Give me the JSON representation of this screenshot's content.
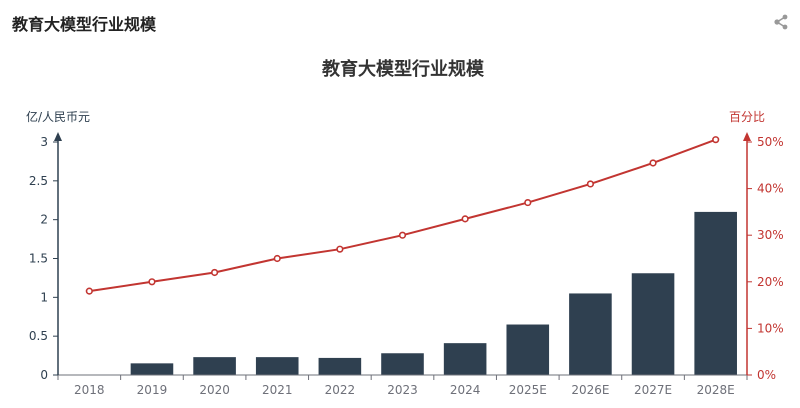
{
  "header": {
    "title": "教育大模型行业规模"
  },
  "icons": {
    "toolbar": "share-icon"
  },
  "colors": {
    "bar": "#2f4050",
    "line": "#c23531",
    "left_axis": "#2f4050",
    "tick_text": "#6e7079"
  },
  "chart_data": {
    "type": "bar",
    "title": "教育大模型行业规模",
    "categories": [
      "2018",
      "2019",
      "2020",
      "2021",
      "2022",
      "2023",
      "2024",
      "2025E",
      "2026E",
      "2027E",
      "2028E"
    ],
    "series": [
      {
        "type": "bar",
        "axis": "left",
        "values": [
          0,
          0.15,
          0.23,
          0.23,
          0.22,
          0.28,
          0.41,
          0.65,
          1.05,
          1.31,
          2.1
        ]
      },
      {
        "type": "line",
        "axis": "right",
        "values": [
          18,
          20,
          22,
          25,
          27,
          30,
          33.5,
          37,
          41,
          45.5,
          50.5
        ]
      }
    ],
    "y_left": {
      "label": "亿/人民币元",
      "ylim": [
        0,
        3
      ],
      "ticks": [
        "0",
        "0.5",
        "1",
        "1.5",
        "2",
        "2.5",
        "3"
      ]
    },
    "y_right": {
      "label": "百分比",
      "ylim": [
        0,
        50
      ],
      "ticks": [
        "0%",
        "10%",
        "20%",
        "30%",
        "40%",
        "50%"
      ]
    },
    "grid": false
  }
}
